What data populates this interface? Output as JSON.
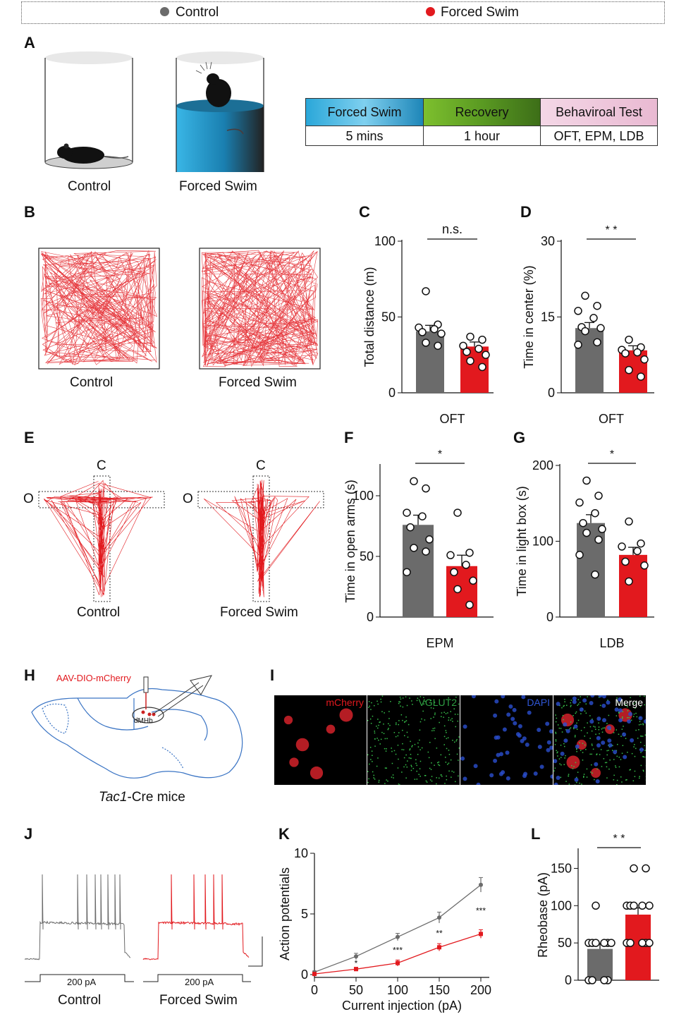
{
  "legend": {
    "control": {
      "label": "Control",
      "color": "#6b6b6b"
    },
    "forced": {
      "label": "Forced Swim",
      "color": "#e2191e"
    }
  },
  "panels": {
    "A": "A",
    "B": "B",
    "C": "C",
    "D": "D",
    "E": "E",
    "F": "F",
    "G": "G",
    "H": "H",
    "I": "I",
    "J": "J",
    "K": "K",
    "L": "L"
  },
  "panelA": {
    "control_label": "Control",
    "forced_label": "Forced Swim",
    "timeline": {
      "headers": [
        "Forced Swim",
        "Recovery",
        "Behaviroal Test"
      ],
      "cells": [
        "5 mins",
        "1 hour",
        "OFT, EPM, LDB"
      ]
    }
  },
  "panelB": {
    "control_label": "Control",
    "forced_label": "Forced Swim"
  },
  "panelE": {
    "closed_label_1": "C",
    "open_label_1": "O",
    "closed_label_2": "C",
    "open_label_2": "O",
    "control_label": "Control",
    "forced_label": "Forced Swim"
  },
  "panelH": {
    "virus": "AAV-DIO-mCherry",
    "region": "dMHb",
    "mouse_italic": "Tac1",
    "mouse_rest": "-Cre mice"
  },
  "panelI": {
    "labels": [
      "mCherry",
      "VGLUT2",
      "DAPI",
      "Merge"
    ],
    "colors": [
      "#e2191e",
      "#2ea043",
      "#2f55d4",
      "#ffffff"
    ]
  },
  "panelJ": {
    "stim_label_1": "200 pA",
    "stim_label_2": "200 pA",
    "control_label": "Control",
    "forced_label": "Forced Swim"
  },
  "chart_data": [
    {
      "id": "C",
      "type": "bar",
      "categories": [
        "Control",
        "Forced Swim"
      ],
      "ylabel": "Total distance (m)",
      "xlabel": "OFT",
      "ylim": [
        0,
        100
      ],
      "yticks": [
        "0",
        "50",
        "100"
      ],
      "sig": "n.s.",
      "means": [
        40.5,
        30.5
      ],
      "sem": [
        4.0,
        3.0
      ],
      "points": [
        [
          67,
          45,
          43,
          42,
          40,
          39,
          33,
          31
        ],
        [
          37,
          35,
          31,
          29,
          27,
          25,
          21,
          17
        ]
      ]
    },
    {
      "id": "D",
      "type": "bar",
      "categories": [
        "Control",
        "Forced Swim"
      ],
      "ylabel": "Time in center (%)",
      "xlabel": "OFT",
      "ylim": [
        0,
        30
      ],
      "yticks": [
        "0",
        "15",
        "30"
      ],
      "sig": "* *",
      "means": [
        12.8,
        8.4
      ],
      "sem": [
        1.1,
        0.9
      ],
      "points": [
        [
          19.2,
          17.2,
          16.2,
          14.8,
          13.0,
          12.8,
          12.2,
          10.0,
          9.5
        ],
        [
          10.5,
          9.0,
          8.5,
          8.0,
          7.8,
          6.6,
          4.5,
          3.2
        ]
      ]
    },
    {
      "id": "F",
      "type": "bar",
      "categories": [
        "Control",
        "Forced Swim"
      ],
      "ylabel": "Time in open arms (s)",
      "xlabel": "EPM",
      "ylim": [
        0,
        125
      ],
      "yticks": [
        "0",
        "50",
        "100"
      ],
      "sig": "*",
      "means": [
        76,
        42
      ],
      "sem": [
        8,
        9
      ],
      "points": [
        [
          112,
          106,
          86,
          83,
          74,
          64,
          57,
          54,
          37
        ],
        [
          86,
          53,
          51,
          43,
          37,
          30,
          23,
          10
        ]
      ]
    },
    {
      "id": "G",
      "type": "bar",
      "categories": [
        "Control",
        "Forced Swim"
      ],
      "ylabel": "Time in light box (s)",
      "xlabel": "LDB",
      "ylim": [
        0,
        200
      ],
      "yticks": [
        "0",
        "100",
        "200"
      ],
      "sig": "*",
      "means": [
        124,
        82
      ],
      "sem": [
        11,
        10
      ],
      "points": [
        [
          180,
          160,
          151,
          137,
          124,
          116,
          111,
          102,
          82,
          56
        ],
        [
          126,
          97,
          93,
          87,
          73,
          68,
          47
        ]
      ]
    },
    {
      "id": "K",
      "type": "line",
      "x": [
        0,
        50,
        100,
        150,
        200
      ],
      "xlabel": "Current injection (pA)",
      "ylabel": "Action potentials",
      "xlim": [
        0,
        200
      ],
      "ylim": [
        0,
        10
      ],
      "xticks": [
        "0",
        "50",
        "100",
        "150",
        "200"
      ],
      "yticks": [
        "0",
        "5",
        "10"
      ],
      "series": [
        {
          "values": [
            0.2,
            1.5,
            3.1,
            4.7,
            7.4
          ],
          "err": [
            0.1,
            0.25,
            0.3,
            0.45,
            0.6
          ]
        },
        {
          "values": [
            0.05,
            0.45,
            0.95,
            2.25,
            3.35
          ],
          "err": [
            0.05,
            0.15,
            0.25,
            0.3,
            0.35
          ]
        }
      ],
      "stars": [
        "*",
        "***",
        "**",
        "***"
      ]
    },
    {
      "id": "L",
      "type": "bar",
      "categories": [
        "Control",
        "Forced Swim"
      ],
      "ylabel": "Rheobase (pA)",
      "xlabel": "",
      "ylim": [
        0,
        175
      ],
      "yticks": [
        "0",
        "50",
        "100",
        "150"
      ],
      "sig": "*  *",
      "means": [
        42,
        88
      ],
      "sem": [
        7,
        9
      ],
      "points": [
        [
          100,
          50,
          50,
          50,
          50,
          50,
          50,
          0,
          0,
          0,
          0
        ],
        [
          150,
          150,
          100,
          100,
          100,
          100,
          100,
          50,
          50,
          50,
          50,
          50
        ]
      ]
    }
  ]
}
